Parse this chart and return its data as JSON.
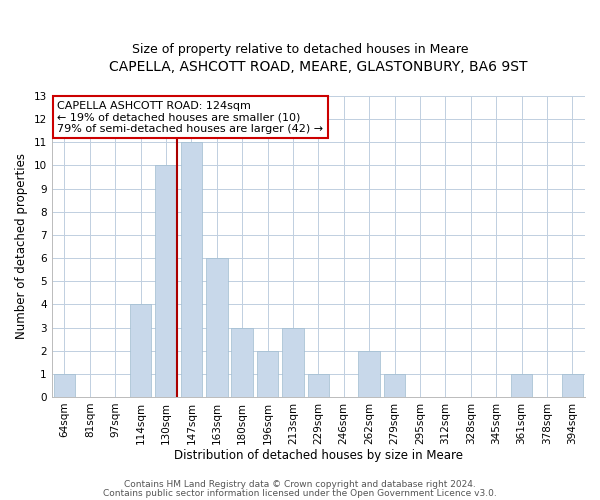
{
  "title": "CAPELLA, ASHCOTT ROAD, MEARE, GLASTONBURY, BA6 9ST",
  "subtitle": "Size of property relative to detached houses in Meare",
  "xlabel": "Distribution of detached houses by size in Meare",
  "ylabel": "Number of detached properties",
  "categories": [
    "64sqm",
    "81sqm",
    "97sqm",
    "114sqm",
    "130sqm",
    "147sqm",
    "163sqm",
    "180sqm",
    "196sqm",
    "213sqm",
    "229sqm",
    "246sqm",
    "262sqm",
    "279sqm",
    "295sqm",
    "312sqm",
    "328sqm",
    "345sqm",
    "361sqm",
    "378sqm",
    "394sqm"
  ],
  "values": [
    1,
    0,
    0,
    4,
    10,
    11,
    6,
    3,
    2,
    3,
    1,
    0,
    2,
    1,
    0,
    0,
    0,
    0,
    1,
    0,
    1
  ],
  "bar_color": "#c8d8ea",
  "bar_edge_color": "#a0bcd0",
  "vline_color": "#aa0000",
  "vline_x_index": 4,
  "ylim": [
    0,
    13
  ],
  "yticks": [
    0,
    1,
    2,
    3,
    4,
    5,
    6,
    7,
    8,
    9,
    10,
    11,
    12,
    13
  ],
  "annotation_title": "CAPELLA ASHCOTT ROAD: 124sqm",
  "annotation_line1": "← 19% of detached houses are smaller (10)",
  "annotation_line2": "79% of semi-detached houses are larger (42) →",
  "annotation_box_color": "#ffffff",
  "annotation_box_edge": "#cc0000",
  "footer1": "Contains HM Land Registry data © Crown copyright and database right 2024.",
  "footer2": "Contains public sector information licensed under the Open Government Licence v3.0.",
  "background_color": "#ffffff",
  "grid_color": "#c0cfe0",
  "title_fontsize": 10,
  "subtitle_fontsize": 9,
  "axis_label_fontsize": 8.5,
  "tick_fontsize": 7.5,
  "footer_fontsize": 6.5,
  "annotation_fontsize": 8
}
